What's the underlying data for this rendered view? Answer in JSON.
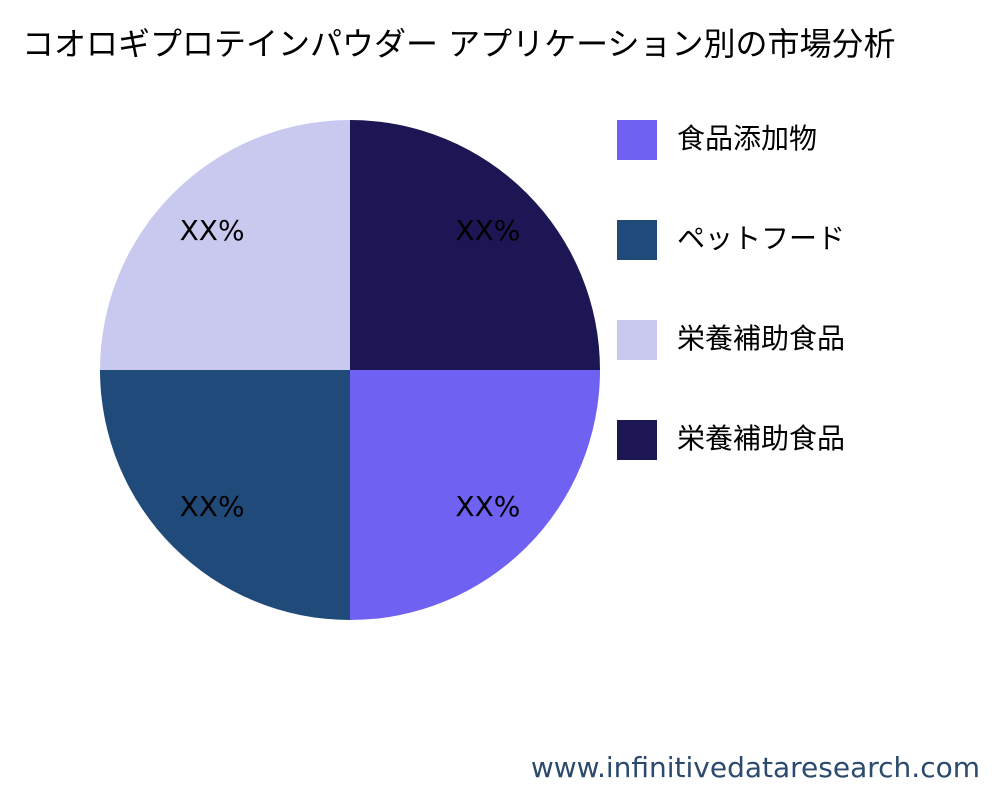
{
  "chart_data": {
    "type": "pie",
    "title": "コオロギプロテインパウダー アプリケーション別の市場分析",
    "categories": [
      "食品添加物",
      "ペットフード",
      "栄養補助食品",
      "栄養補助食品"
    ],
    "values": [
      25,
      25,
      25,
      25
    ],
    "value_labels": [
      "XX%",
      "XX%",
      "XX%",
      "XX%"
    ],
    "colors": [
      "#6f61f2",
      "#1f4a7a",
      "#c9c9f0",
      "#1c1654"
    ],
    "legend": "right",
    "watermark": "www.infinitivedataresearch.com"
  }
}
